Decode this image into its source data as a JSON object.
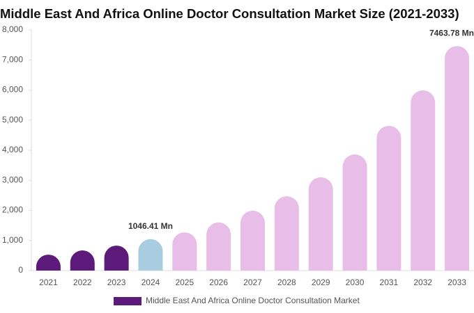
{
  "chart_data": {
    "type": "bar",
    "title": "Middle East And Africa Online Doctor Consultation Market Size (2021-2033)",
    "categories": [
      "2021",
      "2022",
      "2023",
      "2024",
      "2025",
      "2026",
      "2027",
      "2028",
      "2029",
      "2030",
      "2031",
      "2032",
      "2033"
    ],
    "series": [
      {
        "name": "Middle East And Africa Online Doctor Consultation Market",
        "color": "#5c1a7a",
        "colors": [
          "#5c1a7a",
          "#5c1a7a",
          "#5c1a7a",
          "#a8cde0",
          "#e8bde8",
          "#e8bde8",
          "#e8bde8",
          "#e8bde8",
          "#e8bde8",
          "#e8bde8",
          "#e8bde8",
          "#e8bde8",
          "#e8bde8"
        ],
        "values": [
          530,
          670,
          830,
          1046.41,
          1270,
          1600,
          1990,
          2470,
          3100,
          3860,
          4810,
          5990,
          7463.78
        ],
        "value_labels": [
          null,
          null,
          null,
          "1046.41 Mn",
          null,
          null,
          null,
          null,
          null,
          null,
          null,
          null,
          "7463.78 Mn"
        ]
      }
    ],
    "ylim": [
      0,
      8000
    ],
    "yticks": [
      0,
      {
        "value": 1000,
        "label": "1,000"
      },
      {
        "value": 2000,
        "label": "2,000"
      },
      {
        "value": 3000,
        "label": "3,000"
      },
      {
        "value": 4000,
        "label": "4,000"
      },
      {
        "value": 5000,
        "label": "5,000"
      },
      {
        "value": 6000,
        "label": "6,000"
      },
      {
        "value": 7000,
        "label": "7,000"
      },
      {
        "value": 8000,
        "label": "8,000"
      }
    ],
    "grid": false
  }
}
